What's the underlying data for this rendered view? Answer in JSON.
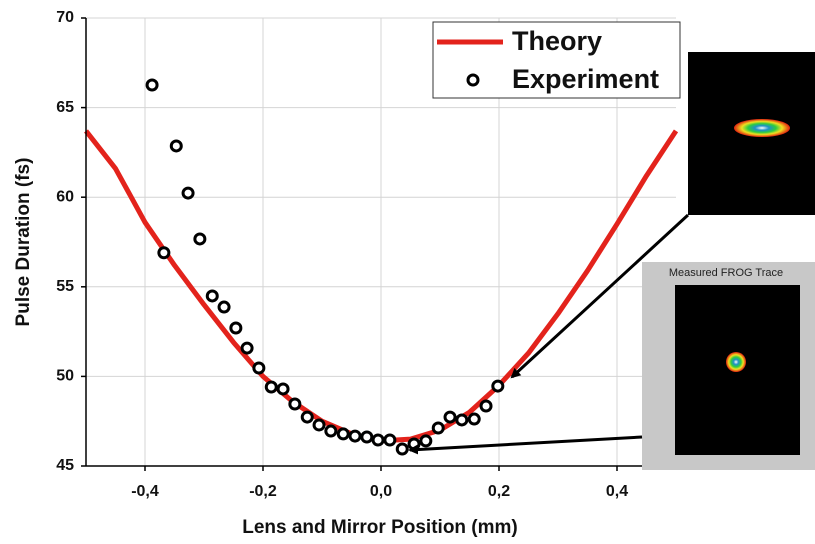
{
  "chart_data": {
    "type": "scatter",
    "x_label": "Lens and Mirror Position (mm)",
    "y_label": "Pulse Duration (fs)",
    "xlim": [
      -0.5,
      0.5
    ],
    "xticks": [
      {
        "value": -0.4,
        "label": "-0,4"
      },
      {
        "value": -0.2,
        "label": "-0,2"
      },
      {
        "value": 0,
        "label": "0,0"
      },
      {
        "value": 0.2,
        "label": "0,2"
      },
      {
        "value": 0.4,
        "label": "0,4"
      }
    ],
    "ylim": [
      45,
      70
    ],
    "yticks": [
      45,
      50,
      55,
      60,
      65,
      70
    ],
    "grid": true,
    "legend": "top-right",
    "series": [
      {
        "name": "Theory",
        "color": "#e3231c",
        "style": "line",
        "x": [
          -0.5,
          -0.45,
          -0.4,
          -0.35,
          -0.3,
          -0.25,
          -0.2,
          -0.15,
          -0.1,
          -0.05,
          0,
          0.05,
          0.1,
          0.15,
          0.2,
          0.25,
          0.3,
          0.35,
          0.4,
          0.45,
          0.5
        ],
        "values": [
          63.7,
          61.6,
          58.6,
          56.2,
          54.0,
          51.9,
          50.0,
          48.6,
          47.5,
          46.8,
          46.4,
          46.5,
          47.0,
          48.0,
          49.5,
          51.3,
          53.5,
          55.9,
          58.5,
          61.2,
          63.7
        ]
      },
      {
        "name": "Experiment",
        "color": "#000000",
        "style": "markers",
        "x": [
          -0.388,
          -0.368,
          -0.347,
          -0.327,
          -0.307,
          -0.286,
          -0.266,
          -0.246,
          -0.227,
          -0.207,
          -0.186,
          -0.166,
          -0.146,
          -0.125,
          -0.105,
          -0.085,
          -0.064,
          -0.044,
          -0.024,
          -0.005,
          0.015,
          0.036,
          0.056,
          0.076,
          0.097,
          0.117,
          0.137,
          0.158,
          0.178,
          0.198
        ],
        "values": [
          66.26,
          56.9,
          62.86,
          60.23,
          57.67,
          54.49,
          53.87,
          52.7,
          51.58,
          50.47,
          49.41,
          49.3,
          48.46,
          47.73,
          47.29,
          46.95,
          46.79,
          46.67,
          46.62,
          46.45,
          46.45,
          45.95,
          46.23,
          46.4,
          47.12,
          47.73,
          47.57,
          47.62,
          48.35,
          49.46
        ]
      }
    ],
    "annotations": [
      "Measured FROG Trace"
    ]
  }
}
